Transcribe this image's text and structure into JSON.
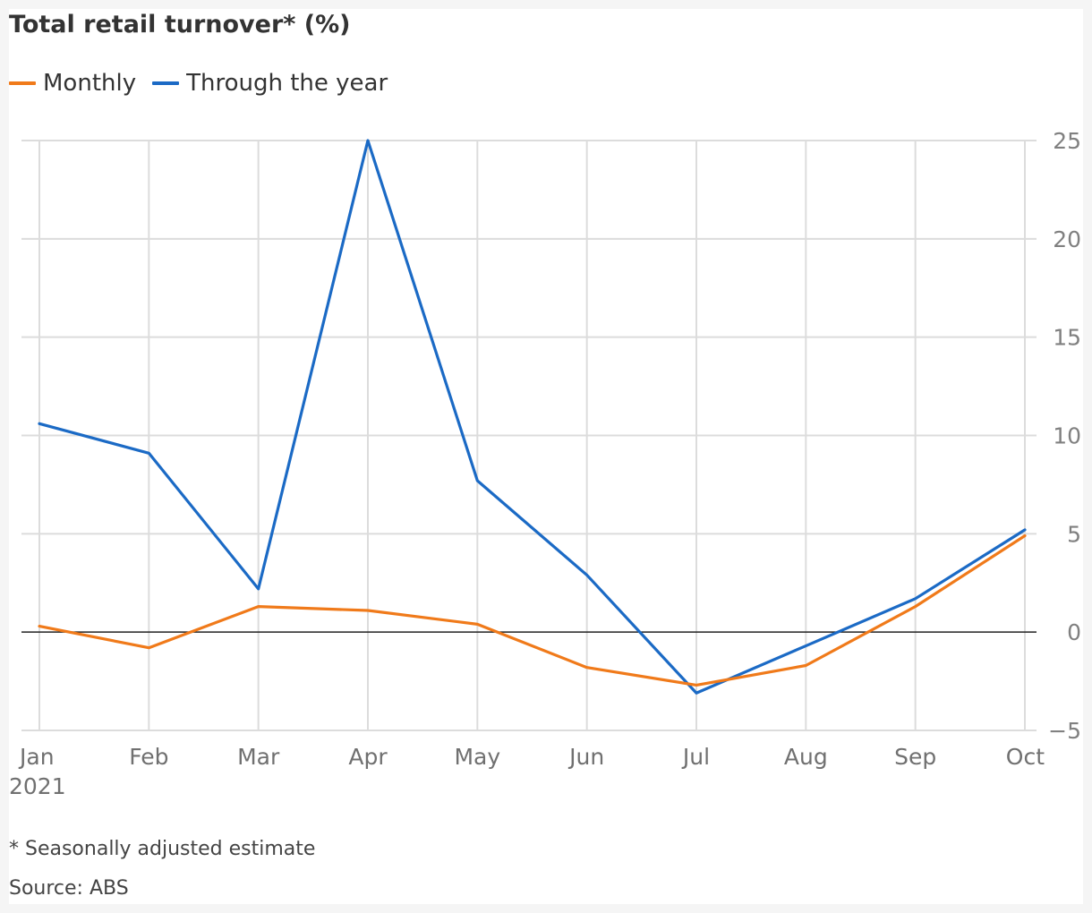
{
  "chart_data": {
    "type": "line",
    "title": "Total retail turnover* (%)",
    "categories": [
      "Jan",
      "Feb",
      "Mar",
      "Apr",
      "May",
      "Jun",
      "Jul",
      "Aug",
      "Sep",
      "Oct"
    ],
    "category_sublabel": "2021",
    "series": [
      {
        "name": "Monthly",
        "color": "#f07a1a",
        "values": [
          0.3,
          -0.8,
          1.3,
          1.1,
          0.4,
          -1.8,
          -2.7,
          -1.7,
          1.3,
          4.9
        ]
      },
      {
        "name": "Through the year",
        "color": "#1b6ac5",
        "values": [
          10.6,
          9.1,
          2.2,
          25.0,
          7.7,
          2.9,
          -3.1,
          -0.7,
          1.7,
          5.2
        ]
      }
    ],
    "ylim": [
      -5,
      25
    ],
    "yticks": [
      25,
      20,
      15,
      10,
      5,
      0,
      -5
    ],
    "ytick_labels": [
      "25",
      "20",
      "15",
      "10",
      "5",
      "0",
      "−5"
    ],
    "y_axis_position": "right",
    "zero_line": true,
    "grid": true,
    "legend_position": "top-left"
  },
  "footnote": "* Seasonally adjusted estimate",
  "source": "Source: ABS"
}
